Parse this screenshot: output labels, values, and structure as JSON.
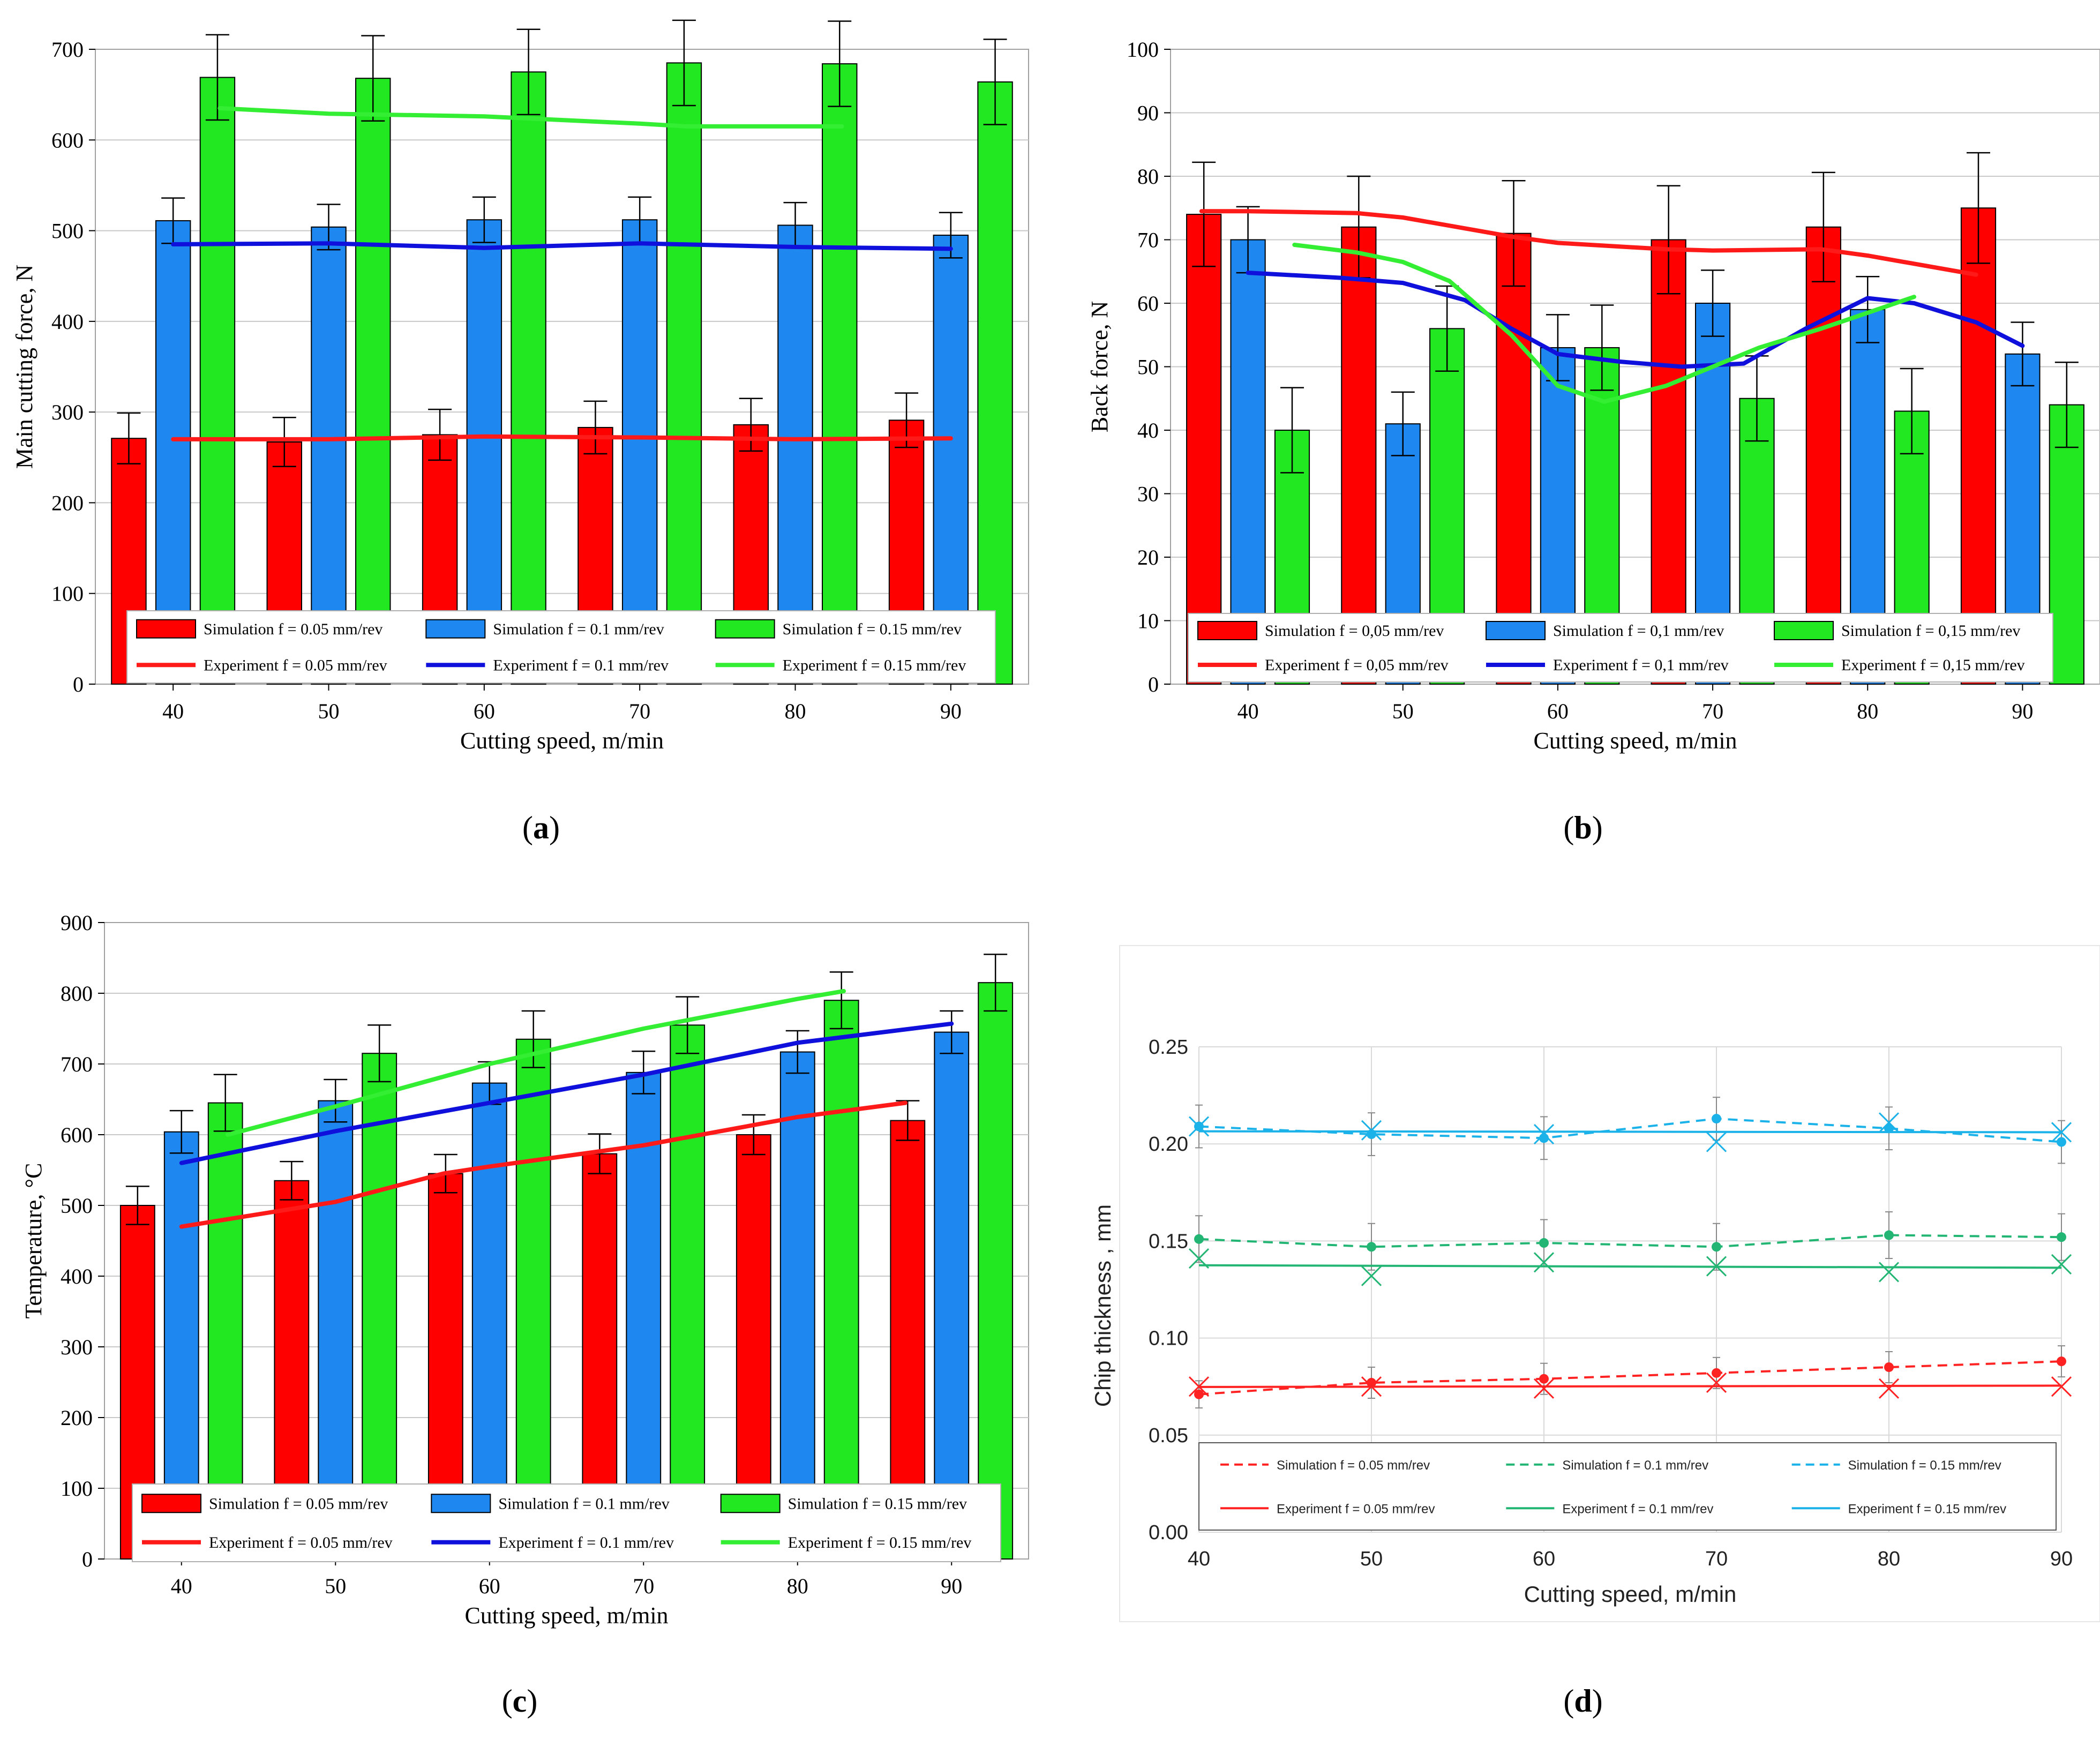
{
  "colors": {
    "red": "#ff0000",
    "blue": "#1e88f0",
    "green": "#22e822",
    "red_line": "#ff1a1a",
    "blue_line": "#1010dd",
    "green_line": "#33ee33",
    "grid": "#c8c8c8",
    "d_red": "#ff2222",
    "d_green": "#22b573",
    "d_cyan": "#1ab2e8"
  },
  "chart_data": [
    {
      "id": "a",
      "caption": "a",
      "type": "bar",
      "xlabel": "Cutting speed, m/min",
      "ylabel": "Main cutting force, N",
      "ylim": [
        0,
        700
      ],
      "yticks": [
        0,
        100,
        200,
        300,
        400,
        500,
        600,
        700
      ],
      "categories": [
        "40",
        "50",
        "60",
        "70",
        "80",
        "90"
      ],
      "series": [
        {
          "name": "Simulation f = 0.05 mm/rev",
          "color": "red",
          "values": [
            271,
            267,
            275,
            283,
            286,
            291
          ],
          "errors": [
            28,
            27,
            28,
            29,
            29,
            30
          ]
        },
        {
          "name": "Simulation f = 0.1 mm/rev",
          "color": "blue",
          "values": [
            511,
            504,
            512,
            512,
            506,
            495
          ],
          "errors": [
            25,
            25,
            25,
            25,
            25,
            25
          ]
        },
        {
          "name": "Simulation f = 0.15 mm/rev",
          "color": "green",
          "values": [
            669,
            668,
            675,
            685,
            684,
            664
          ],
          "errors": [
            47,
            47,
            47,
            47,
            47,
            47
          ]
        }
      ],
      "lines": [
        {
          "name": "Experiment f = 0.05 mm/rev",
          "color": "red_line",
          "x": [
            40,
            50,
            60,
            70,
            80,
            90
          ],
          "y": [
            270,
            270,
            273,
            272,
            270,
            271
          ]
        },
        {
          "name": "Experiment f = 0.1 mm/rev",
          "color": "blue_line",
          "x": [
            40,
            50,
            60,
            70,
            80,
            90
          ],
          "y": [
            485,
            486,
            481,
            486,
            482,
            480
          ]
        },
        {
          "name": "Experiment f = 0.15 mm/rev",
          "color": "green_line",
          "x": [
            43,
            50,
            60,
            70,
            73,
            80,
            83
          ],
          "y": [
            635,
            629,
            626,
            618,
            615,
            615,
            615
          ]
        }
      ],
      "legend_rows": [
        [
          "Simulation f = 0.05 mm/rev",
          "Simulation f = 0.1 mm/rev",
          "Simulation f = 0.15 mm/rev"
        ],
        [
          "Experiment f = 0.05 mm/rev",
          "Experiment f = 0.1 mm/rev",
          "Experiment f = 0.15 mm/rev"
        ]
      ]
    },
    {
      "id": "b",
      "caption": "b",
      "type": "bar",
      "xlabel": "Cutting speed, m/min",
      "ylabel": "Back force, N",
      "ylim": [
        0,
        100
      ],
      "yticks": [
        0,
        10,
        20,
        30,
        40,
        50,
        60,
        70,
        80,
        90,
        100
      ],
      "categories": [
        "40",
        "50",
        "60",
        "70",
        "80",
        "90"
      ],
      "series": [
        {
          "name": "Simulation f = 0,05 mm/rev",
          "color": "red",
          "values": [
            74,
            72,
            71,
            70,
            72,
            75
          ],
          "errors": [
            8.2,
            8.0,
            8.3,
            8.5,
            8.6,
            8.7
          ]
        },
        {
          "name": "Simulation f = 0,1 mm/rev",
          "color": "blue",
          "values": [
            70,
            41,
            53,
            60,
            59,
            52
          ],
          "errors": [
            5.2,
            5.0,
            5.2,
            5.2,
            5.2,
            5.0
          ]
        },
        {
          "name": "Simulation f = 0,15 mm/rev",
          "color": "green",
          "values": [
            40,
            56,
            53,
            45,
            43,
            44
          ],
          "errors": [
            6.7,
            6.7,
            6.7,
            6.7,
            6.7,
            6.7
          ]
        }
      ],
      "lines": [
        {
          "name": "Experiment f = 0,05 mm/rev",
          "color": "red_line",
          "x": [
            37,
            40,
            47,
            50,
            57,
            60,
            67,
            70,
            77,
            80,
            87
          ],
          "y": [
            74.5,
            74.5,
            74.2,
            73.5,
            70.5,
            69.5,
            68.5,
            68.3,
            68.5,
            67.5,
            64.5
          ]
        },
        {
          "name": "Experiment f = 0,1 mm/rev",
          "color": "blue_line",
          "x": [
            40,
            46,
            50,
            54,
            57,
            60,
            64,
            68,
            72,
            76,
            80,
            83,
            87,
            90
          ],
          "y": [
            64.8,
            64.0,
            63.2,
            60.5,
            56.0,
            52.0,
            50.8,
            50.0,
            50.5,
            56.0,
            60.8,
            60.0,
            57.0,
            53.3
          ]
        },
        {
          "name": "Experiment f = 0,15 mm/rev",
          "color": "green_line",
          "x": [
            43,
            47,
            50,
            53,
            57,
            60,
            63,
            67,
            70,
            73,
            77,
            80,
            83
          ],
          "y": [
            69.2,
            68.0,
            66.5,
            63.5,
            55.0,
            47.0,
            44.5,
            47.0,
            50.0,
            53.0,
            56.0,
            58.5,
            61.0
          ]
        }
      ],
      "legend_rows": [
        [
          "Simulation f = 0,05 mm/rev",
          "Simulation f = 0,1 mm/rev",
          "Simulation f = 0,15 mm/rev"
        ],
        [
          "Experiment f = 0,05 mm/rev",
          "Experiment f = 0,1 mm/rev",
          "Experiment f = 0,15 mm/rev"
        ]
      ]
    },
    {
      "id": "c",
      "caption": "c",
      "type": "bar",
      "xlabel": "Cutting speed, m/min",
      "ylabel": "Temperature, °C",
      "ylim": [
        0,
        900
      ],
      "yticks": [
        0,
        100,
        200,
        300,
        400,
        500,
        600,
        700,
        800,
        900
      ],
      "categories": [
        "40",
        "50",
        "60",
        "70",
        "80",
        "90"
      ],
      "series": [
        {
          "name": "Simulation f = 0.05 mm/rev",
          "color": "red",
          "values": [
            500,
            535,
            545,
            573,
            600,
            620
          ],
          "errors": [
            27,
            27,
            27,
            28,
            28,
            28
          ]
        },
        {
          "name": "Simulation f = 0.1 mm/rev",
          "color": "blue",
          "values": [
            604,
            648,
            673,
            688,
            717,
            745
          ],
          "errors": [
            30,
            30,
            30,
            30,
            30,
            30
          ]
        },
        {
          "name": "Simulation f = 0.15 mm/rev",
          "color": "green",
          "values": [
            645,
            715,
            735,
            755,
            790,
            815
          ],
          "errors": [
            40,
            40,
            40,
            40,
            40,
            40
          ]
        }
      ],
      "lines": [
        {
          "name": "Experiment f = 0.05 mm/rev",
          "color": "red_line",
          "x": [
            40,
            50,
            57,
            60,
            70,
            80,
            87
          ],
          "y": [
            470,
            505,
            545,
            555,
            585,
            625,
            645
          ]
        },
        {
          "name": "Experiment f = 0.1 mm/rev",
          "color": "blue_line",
          "x": [
            40,
            50,
            60,
            70,
            80,
            90
          ],
          "y": [
            560,
            605,
            645,
            685,
            730,
            757
          ]
        },
        {
          "name": "Experiment f = 0.15 mm/rev",
          "color": "green_line",
          "x": [
            43,
            50,
            60,
            70,
            80,
            83
          ],
          "y": [
            600,
            640,
            700,
            750,
            792,
            803
          ]
        }
      ],
      "legend_rows": [
        [
          "Simulation f = 0.05 mm/rev",
          "Simulation f = 0.1 mm/rev",
          "Simulation f = 0.15 mm/rev"
        ],
        [
          "Experiment f = 0.05 mm/rev",
          "Experiment f = 0.1 mm/rev",
          "Experiment f = 0.15 mm/rev"
        ]
      ]
    },
    {
      "id": "d",
      "caption": "d",
      "type": "scatter",
      "xlabel": "Cutting speed, m/min",
      "ylabel": "Chip thickness , mm",
      "xlim": [
        40,
        90
      ],
      "ylim": [
        0,
        0.25
      ],
      "xticks": [
        40,
        50,
        60,
        70,
        80,
        90
      ],
      "yticks": [
        0.0,
        0.05,
        0.1,
        0.15,
        0.2,
        0.25
      ],
      "ytick_labels": [
        "0.00",
        "0.05",
        "0.10",
        "0.15",
        "0.20",
        "0.25"
      ],
      "series": [
        {
          "name": "Simulation f = 0.05 mm/rev",
          "color": "d_red",
          "style": "dashed",
          "marker": "dot",
          "x": [
            40,
            50,
            60,
            70,
            80,
            90
          ],
          "y": [
            0.071,
            0.077,
            0.079,
            0.082,
            0.085,
            0.088
          ],
          "errors": [
            0.007,
            0.008,
            0.008,
            0.008,
            0.008,
            0.008
          ]
        },
        {
          "name": "Simulation f = 0.1 mm/rev",
          "color": "d_green",
          "style": "dashed",
          "marker": "dot",
          "x": [
            40,
            50,
            60,
            70,
            80,
            90
          ],
          "y": [
            0.151,
            0.147,
            0.149,
            0.147,
            0.153,
            0.152
          ],
          "errors": [
            0.012,
            0.012,
            0.012,
            0.012,
            0.012,
            0.012
          ]
        },
        {
          "name": "Simulation f = 0.15 mm/rev",
          "color": "d_cyan",
          "style": "dashed",
          "marker": "dot",
          "x": [
            40,
            50,
            60,
            70,
            80,
            90
          ],
          "y": [
            0.209,
            0.205,
            0.203,
            0.213,
            0.208,
            0.201
          ],
          "errors": [
            0.011,
            0.011,
            0.011,
            0.011,
            0.011,
            0.011
          ]
        },
        {
          "name": "Experiment f = 0.05 mm/rev",
          "color": "d_red",
          "style": "solid",
          "marker": "x",
          "x": [
            40,
            50,
            60,
            70,
            80,
            90
          ],
          "y": [
            0.075,
            0.075,
            0.074,
            0.077,
            0.074,
            0.075
          ]
        },
        {
          "name": "Experiment f = 0.1 mm/rev",
          "color": "d_green",
          "style": "solid",
          "marker": "x",
          "x": [
            40,
            50,
            60,
            70,
            80,
            90
          ],
          "y": [
            0.141,
            0.132,
            0.139,
            0.137,
            0.134,
            0.138
          ]
        },
        {
          "name": "Experiment f = 0.15 mm/rev",
          "color": "d_cyan",
          "style": "solid",
          "marker": "x",
          "x": [
            40,
            50,
            60,
            70,
            80,
            90
          ],
          "y": [
            0.209,
            0.207,
            0.205,
            0.201,
            0.211,
            0.206
          ]
        }
      ],
      "trend": {
        "Experiment f = 0.05 mm/rev": [
          0.0748,
          0.0755
        ],
        "Experiment f = 0.1 mm/rev": [
          0.1375,
          0.1362
        ],
        "Experiment f = 0.15 mm/rev": [
          0.2065,
          0.206
        ]
      },
      "legend_rows": [
        [
          "Simulation f = 0.05 mm/rev",
          "Simulation f = 0.1 mm/rev",
          "Simulation f = 0.15 mm/rev"
        ],
        [
          "Experiment f = 0.05 mm/rev",
          "Experiment f = 0.1 mm/rev",
          "Experiment f = 0.15 mm/rev"
        ]
      ]
    }
  ]
}
